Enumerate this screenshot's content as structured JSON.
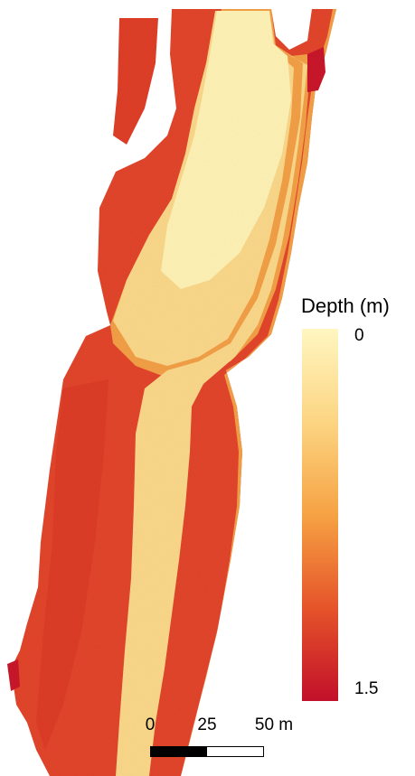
{
  "legend": {
    "title": "Depth (m)",
    "min_label": "0",
    "max_label": "1.5",
    "colors": {
      "shallow": "#fff6c0",
      "mid": "#f7a640",
      "deep": "#c2102a"
    }
  },
  "scale_bar": {
    "labels": [
      "0",
      "25",
      "50 m"
    ]
  },
  "map_colors": {
    "deep_bank": "#e2452a",
    "deep_patch": "#d23024",
    "channel_mid": "#f3a046",
    "channel_light": "#fbd88a",
    "shallow_core": "#fff2b5"
  }
}
